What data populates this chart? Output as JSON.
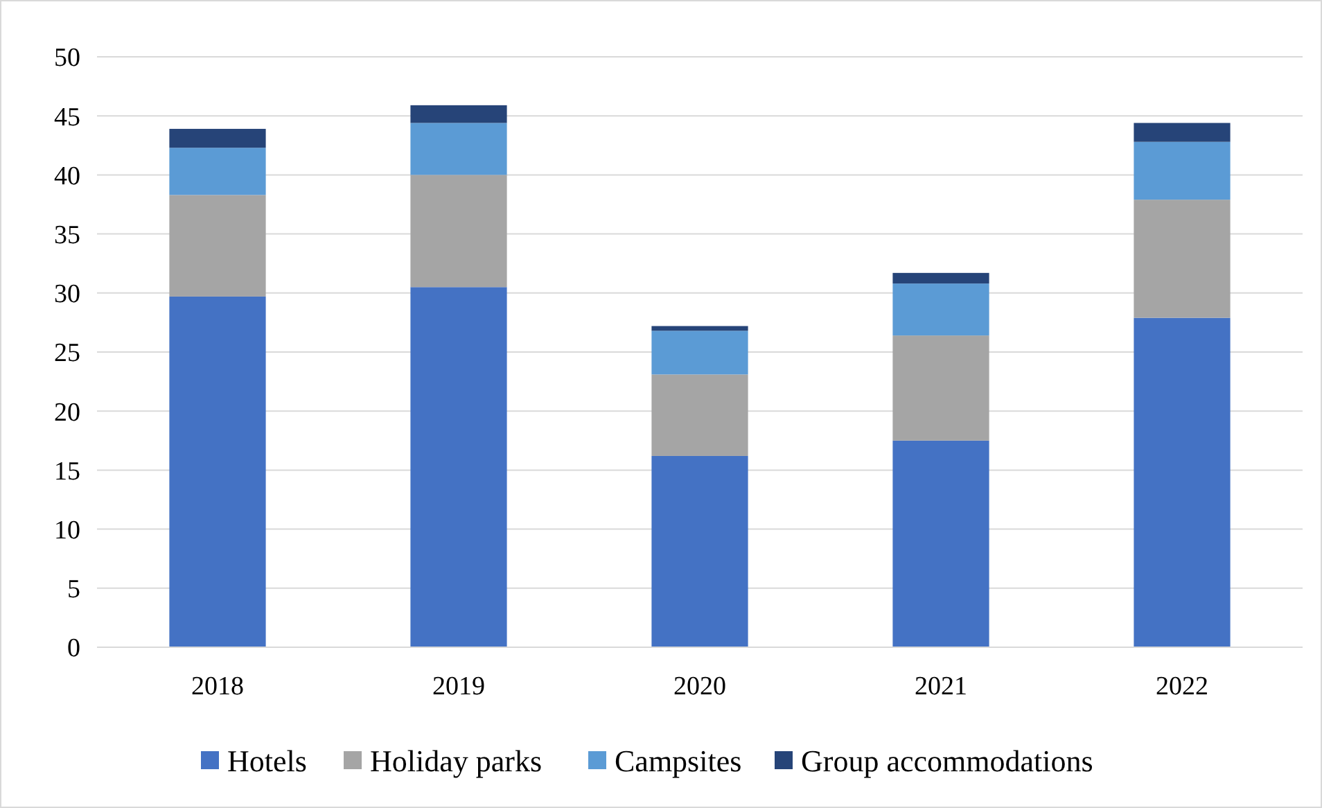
{
  "chart_data": {
    "type": "bar",
    "stacked": true,
    "categories": [
      "2018",
      "2019",
      "2020",
      "2021",
      "2022"
    ],
    "series": [
      {
        "name": "Hotels",
        "color": "#4472c4",
        "values": [
          29.7,
          30.5,
          16.2,
          17.5,
          27.9
        ]
      },
      {
        "name": "Holiday parks",
        "color": "#a5a5a5",
        "values": [
          8.6,
          9.5,
          6.9,
          8.9,
          10.0
        ]
      },
      {
        "name": "Campsites",
        "color": "#5b9bd5",
        "values": [
          4.0,
          4.4,
          3.7,
          4.4,
          4.9
        ]
      },
      {
        "name": "Group accommodations",
        "color": "#264478",
        "values": [
          1.6,
          1.5,
          0.4,
          0.9,
          1.6
        ]
      }
    ],
    "ylim": [
      0,
      50
    ],
    "yticks": [
      0,
      5,
      10,
      15,
      20,
      25,
      30,
      35,
      40,
      45,
      50
    ],
    "grid": "y",
    "legend": "bottom"
  }
}
